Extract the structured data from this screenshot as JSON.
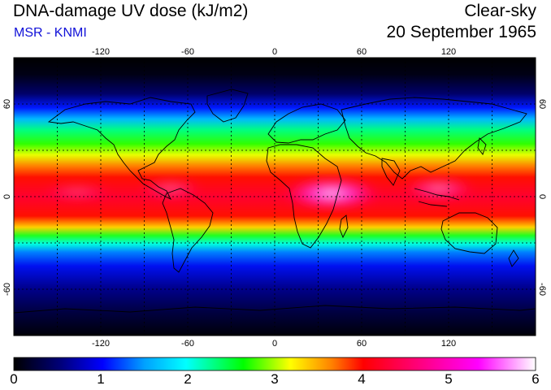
{
  "header": {
    "title": "DNA-damage UV dose (kJ/m2)",
    "source": "MSR - KNMI",
    "sky_condition": "Clear-sky",
    "date": "20 September 1965"
  },
  "map": {
    "projection": "equirectangular",
    "lon_range": [
      -180,
      180
    ],
    "lat_range": [
      -90,
      90
    ],
    "lon_ticks": [
      "-120",
      "-60",
      "0",
      "60",
      "120"
    ],
    "lat_ticks": [
      "60",
      "0",
      "-60"
    ],
    "grid_lines": true,
    "lon_grid": [
      -150,
      -120,
      -90,
      -60,
      -30,
      0,
      30,
      60,
      90,
      120,
      150
    ],
    "lat_grid": [
      -60,
      -30,
      0,
      30,
      60
    ]
  },
  "colorbar": {
    "min": 0,
    "max": 6,
    "tick_labels": [
      "0",
      "1",
      "2",
      "3",
      "4",
      "5",
      "6"
    ],
    "colors": [
      "#000000",
      "#00007a",
      "#0000ff",
      "#00a0ff",
      "#00ffff",
      "#00ff00",
      "#ffff00",
      "#ff8000",
      "#ff0000",
      "#ff0080",
      "#ff00ff",
      "#ffffff"
    ]
  }
}
